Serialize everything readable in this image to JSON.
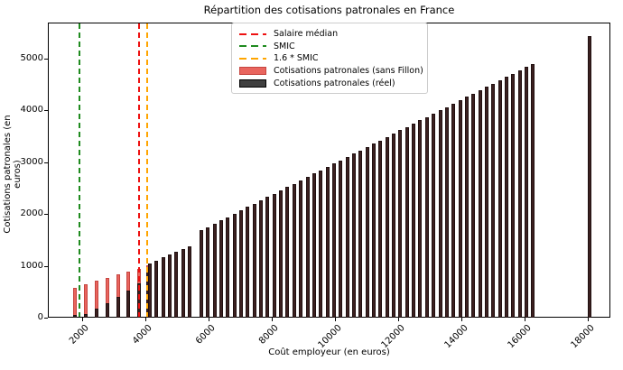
{
  "title": "Répartition des cotisations patronales en France",
  "axes": {
    "x_label": "Coût employeur (en euros)",
    "y_label": "Cotisations patronales (en euros)",
    "x_ticks": [
      2000,
      4000,
      6000,
      8000,
      10000,
      12000,
      14000,
      16000,
      18000
    ],
    "y_ticks": [
      0,
      1000,
      2000,
      3000,
      4000,
      5000
    ],
    "x_range": [
      914,
      18714
    ],
    "y_range": [
      0,
      5690
    ]
  },
  "colors": {
    "sans_fillon_fill": "#e9655e",
    "sans_fillon_edge": "#c64540",
    "reel_fill": "#3c2020",
    "reel_edge": "#201010",
    "reel_legend_patch": "#3f3f3f",
    "median_line": "#ee1111",
    "smic_line": "#1f8b1f",
    "smic16_line": "#ffa500"
  },
  "legend": {
    "entries": [
      {
        "type": "dash",
        "color": "#ee1111",
        "label": "Salaire médian"
      },
      {
        "type": "dash",
        "color": "#1f8b1f",
        "label": "SMIC"
      },
      {
        "type": "dash",
        "color": "#ffa500",
        "label": "1.6 * SMIC"
      },
      {
        "type": "patch",
        "color": "#e9655e",
        "edge": "#c64540",
        "label": "Cotisations patronales (sans Fillon)"
      },
      {
        "type": "patch",
        "color": "#3f3f3f",
        "edge": "#000000",
        "label": "Cotisations patronales (réel)"
      }
    ]
  },
  "chart_data": {
    "type": "bar",
    "title": "Répartition des cotisations patronales en France",
    "xlabel": "Coût employeur (en euros)",
    "ylabel": "Cotisations patronales (en euros)",
    "xlim": [
      914,
      18714
    ],
    "ylim": [
      0,
      5690
    ],
    "grid": false,
    "legend_position": "upper center-left",
    "bar_width_x_units": 120,
    "vlines": [
      {
        "name": "salaire-median",
        "x": 3771,
        "color": "#ee1111",
        "style": "dashed",
        "label": "Salaire médian"
      },
      {
        "name": "smic",
        "x": 1886,
        "color": "#1f8b1f",
        "style": "dashed",
        "label": "SMIC"
      },
      {
        "name": "smic-1-6",
        "x": 4026,
        "color": "#ffa500",
        "style": "dashed",
        "label": "1.6 * SMIC"
      }
    ],
    "series": [
      {
        "name": "Cotisations patronales (sans Fillon)",
        "color": "#e9655e",
        "x": [
          1740,
          2085,
          2430,
          2770,
          3110,
          3435,
          3770,
          4050
        ],
        "values": [
          590,
          655,
          725,
          785,
          845,
          905,
          960,
          1020
        ]
      },
      {
        "name": "Cotisations patronales (réel)",
        "color": "#3c2020",
        "x": [
          1740,
          2085,
          2430,
          2770,
          3110,
          3435,
          3770,
          4050,
          4115,
          4325,
          4535,
          4740,
          4950,
          5160,
          5370,
          5740,
          5950,
          6160,
          6370,
          6580,
          6790,
          7000,
          7210,
          7420,
          7630,
          7840,
          8050,
          8260,
          8470,
          8680,
          8890,
          9100,
          9310,
          9520,
          9730,
          9940,
          10150,
          10360,
          10570,
          10780,
          10990,
          11200,
          11410,
          11620,
          11830,
          12040,
          12250,
          12460,
          12670,
          12880,
          13090,
          13300,
          13510,
          13720,
          13930,
          14140,
          14350,
          14560,
          14770,
          14980,
          15190,
          15400,
          15610,
          15820,
          16030,
          16240,
          18030
        ],
        "values": [
          65,
          95,
          190,
          295,
          410,
          540,
          675,
          1000,
          1065,
          1120,
          1175,
          1230,
          1285,
          1340,
          1395,
          1700,
          1764,
          1829,
          1893,
          1957,
          2022,
          2086,
          2150,
          2214,
          2279,
          2343,
          2407,
          2472,
          2536,
          2600,
          2665,
          2729,
          2793,
          2857,
          2922,
          2986,
          3050,
          3115,
          3179,
          3243,
          3308,
          3372,
          3436,
          3500,
          3565,
          3629,
          3693,
          3758,
          3822,
          3886,
          3951,
          4015,
          4079,
          4143,
          4208,
          4272,
          4336,
          4401,
          4465,
          4529,
          4594,
          4658,
          4722,
          4786,
          4851,
          4915,
          5455
        ]
      }
    ]
  }
}
